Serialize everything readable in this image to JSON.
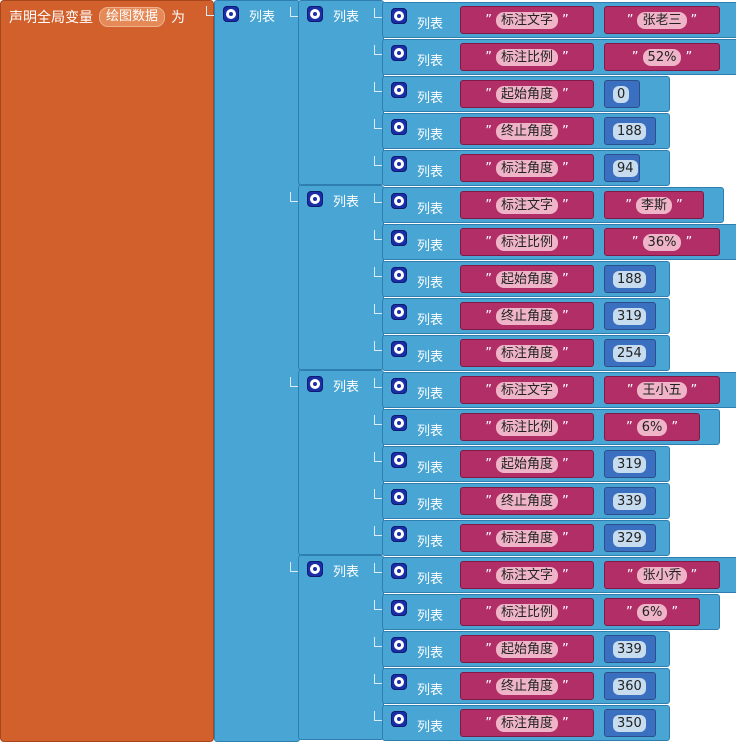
{
  "global": {
    "declare_label": "声明全局变量",
    "var_name": "绘图数据",
    "to_label": "为"
  },
  "list_label": "列表",
  "entries": [
    {
      "fields": [
        {
          "key": "标注文字",
          "value": "张老三",
          "type": "text"
        },
        {
          "key": "标注比例",
          "value": "52%",
          "type": "text"
        },
        {
          "key": "起始角度",
          "value": "0",
          "type": "number"
        },
        {
          "key": "终止角度",
          "value": "188",
          "type": "number"
        },
        {
          "key": "标注角度",
          "value": "94",
          "type": "number"
        }
      ]
    },
    {
      "fields": [
        {
          "key": "标注文字",
          "value": "李斯",
          "type": "text"
        },
        {
          "key": "标注比例",
          "value": "36%",
          "type": "text"
        },
        {
          "key": "起始角度",
          "value": "188",
          "type": "number"
        },
        {
          "key": "终止角度",
          "value": "319",
          "type": "number"
        },
        {
          "key": "标注角度",
          "value": "254",
          "type": "number"
        }
      ]
    },
    {
      "fields": [
        {
          "key": "标注文字",
          "value": "王小五",
          "type": "text"
        },
        {
          "key": "标注比例",
          "value": "6%",
          "type": "text"
        },
        {
          "key": "起始角度",
          "value": "319",
          "type": "number"
        },
        {
          "key": "终止角度",
          "value": "339",
          "type": "number"
        },
        {
          "key": "标注角度",
          "value": "329",
          "type": "number"
        }
      ]
    },
    {
      "fields": [
        {
          "key": "标注文字",
          "value": "张小乔",
          "type": "text"
        },
        {
          "key": "标注比例",
          "value": "6%",
          "type": "text"
        },
        {
          "key": "起始角度",
          "value": "339",
          "type": "number"
        },
        {
          "key": "终止角度",
          "value": "360",
          "type": "number"
        },
        {
          "key": "标注角度",
          "value": "350",
          "type": "number"
        }
      ]
    }
  ],
  "colors": {
    "global_block": "#d2602c",
    "list_block": "#49a6d4",
    "text_block": "#b22e66",
    "number_block": "#3b6fbf"
  }
}
